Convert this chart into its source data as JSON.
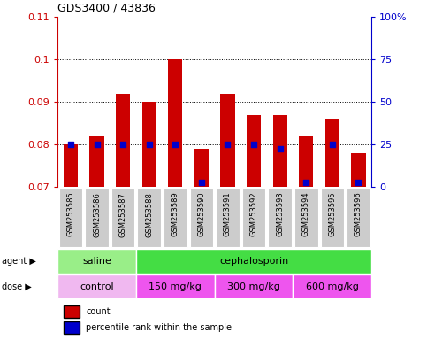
{
  "title": "GDS3400 / 43836",
  "samples": [
    "GSM253585",
    "GSM253586",
    "GSM253587",
    "GSM253588",
    "GSM253589",
    "GSM253590",
    "GSM253591",
    "GSM253592",
    "GSM253593",
    "GSM253594",
    "GSM253595",
    "GSM253596"
  ],
  "bar_values": [
    0.08,
    0.082,
    0.092,
    0.09,
    0.1,
    0.079,
    0.092,
    0.087,
    0.087,
    0.082,
    0.086,
    0.078
  ],
  "percentile_values": [
    0.08,
    0.08,
    0.08,
    0.08,
    0.08,
    0.071,
    0.08,
    0.08,
    0.079,
    0.071,
    0.08,
    0.071
  ],
  "bar_bottom": 0.07,
  "ylim": [
    0.07,
    0.11
  ],
  "yticks_left": [
    0.07,
    0.08,
    0.09,
    0.1,
    0.11
  ],
  "yticks_right_labels": [
    "0",
    "25",
    "50",
    "75",
    "100%"
  ],
  "yticks_right_vals": [
    0.07,
    0.08,
    0.09,
    0.1,
    0.11
  ],
  "bar_color": "#cc0000",
  "percentile_color": "#0000cc",
  "agent_groups": [
    {
      "label": "saline",
      "start": 0,
      "end": 3,
      "color": "#99ee88"
    },
    {
      "label": "cephalosporin",
      "start": 3,
      "end": 12,
      "color": "#44dd44"
    }
  ],
  "dose_groups": [
    {
      "label": "control",
      "start": 0,
      "end": 3,
      "color": "#f0b8f0"
    },
    {
      "label": "150 mg/kg",
      "start": 3,
      "end": 6,
      "color": "#ee55ee"
    },
    {
      "label": "300 mg/kg",
      "start": 6,
      "end": 9,
      "color": "#ee55ee"
    },
    {
      "label": "600 mg/kg",
      "start": 9,
      "end": 12,
      "color": "#ee55ee"
    }
  ],
  "tick_label_bg": "#cccccc",
  "bar_width": 0.55,
  "fig_bg": "#ffffff",
  "legend_items": [
    {
      "label": "count",
      "color": "#cc0000",
      "marker": "s"
    },
    {
      "label": "percentile rank within the sample",
      "color": "#0000cc",
      "marker": "s"
    }
  ]
}
